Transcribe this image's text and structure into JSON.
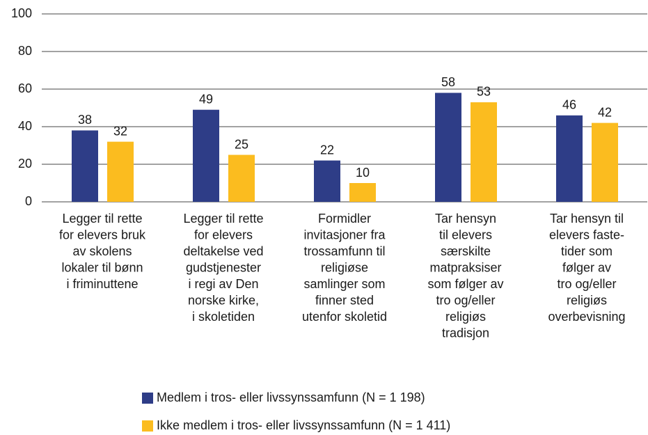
{
  "chart_data": {
    "type": "bar",
    "categories": [
      [
        "Legger til rette",
        "for elevers bruk",
        "av skolens",
        "lokaler til bønn",
        "i friminuttene"
      ],
      [
        "Legger til rette",
        "for elevers",
        "deltakelse ved",
        "gudstjenester",
        "i regi av Den",
        "norske kirke,",
        "i skoletiden"
      ],
      [
        "Formidler",
        "invitasjoner fra",
        "trossamfunn til",
        "religiøse",
        "samlinger som",
        "finner sted",
        "utenfor skoletid"
      ],
      [
        "Tar hensyn",
        "til elevers",
        "særskilte",
        "matpraksiser",
        "som følger av",
        "tro og/eller",
        "religiøs",
        "tradisjon"
      ],
      [
        "Tar hensyn til",
        "elevers faste-",
        "tider som",
        "følger av",
        "tro og/eller",
        "religiøs",
        "overbevisning"
      ]
    ],
    "series": [
      {
        "name": "Medlem i tros- eller livssynssamfunn (N = 1 198)",
        "color": "#2e3d87",
        "values": [
          38,
          49,
          22,
          58,
          46
        ]
      },
      {
        "name": "Ikke medlem i tros- eller livssynssamfunn (N = 1 411)",
        "color": "#fbbc1f",
        "values": [
          32,
          25,
          10,
          53,
          42
        ]
      }
    ],
    "ylim": [
      0,
      100
    ],
    "yticks": [
      0,
      20,
      40,
      60,
      80,
      100
    ],
    "grid": true,
    "legend": "bottom"
  }
}
